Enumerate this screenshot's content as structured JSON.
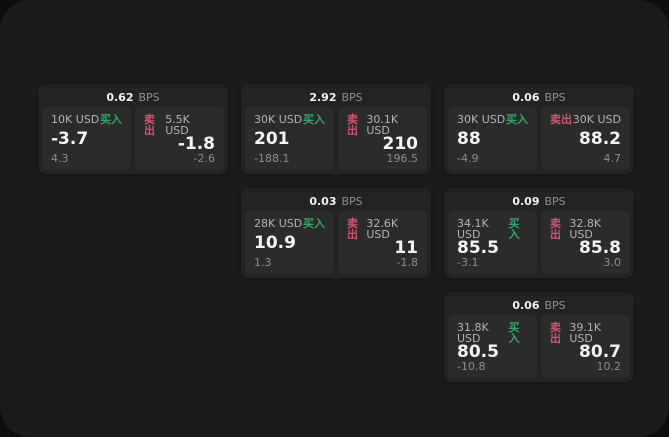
{
  "labels": {
    "bps_unit": "BPS",
    "buy": "买入",
    "sell": "卖出"
  },
  "colors": {
    "buy_accent": "#35a56a",
    "sell_accent": "#cf5470",
    "panel_background": "#1b1b1c",
    "card_background": "#232324",
    "tile_background": "#2b2b2c"
  },
  "cards": [
    {
      "bps": "0.62",
      "buy": {
        "amount": "10K USD",
        "price": "-3.7",
        "delta": "4.3"
      },
      "sell": {
        "amount": "5.5K USD",
        "price": "-1.8",
        "delta": "-2.6"
      }
    },
    {
      "bps": "2.92",
      "buy": {
        "amount": "30K USD",
        "price": "201",
        "delta": "-188.1"
      },
      "sell": {
        "amount": "30.1K USD",
        "price": "210",
        "delta": "196.5"
      }
    },
    {
      "bps": "0.06",
      "buy": {
        "amount": "30K USD",
        "price": "88",
        "delta": "-4.9"
      },
      "sell": {
        "amount": "30K USD",
        "price": "88.2",
        "delta": "4.7"
      }
    },
    {
      "bps": "0.03",
      "buy": {
        "amount": "28K USD",
        "price": "10.9",
        "delta": "1.3"
      },
      "sell": {
        "amount": "32.6K USD",
        "price": "11",
        "delta": "-1.8"
      }
    },
    {
      "bps": "0.09",
      "buy": {
        "amount": "34.1K USD",
        "price": "85.5",
        "delta": "-3.1"
      },
      "sell": {
        "amount": "32.8K USD",
        "price": "85.8",
        "delta": "3.0"
      }
    },
    {
      "bps": "0.06",
      "buy": {
        "amount": "31.8K USD",
        "price": "80.5",
        "delta": "-10.8"
      },
      "sell": {
        "amount": "39.1K USD",
        "price": "80.7",
        "delta": "10.2"
      }
    }
  ]
}
